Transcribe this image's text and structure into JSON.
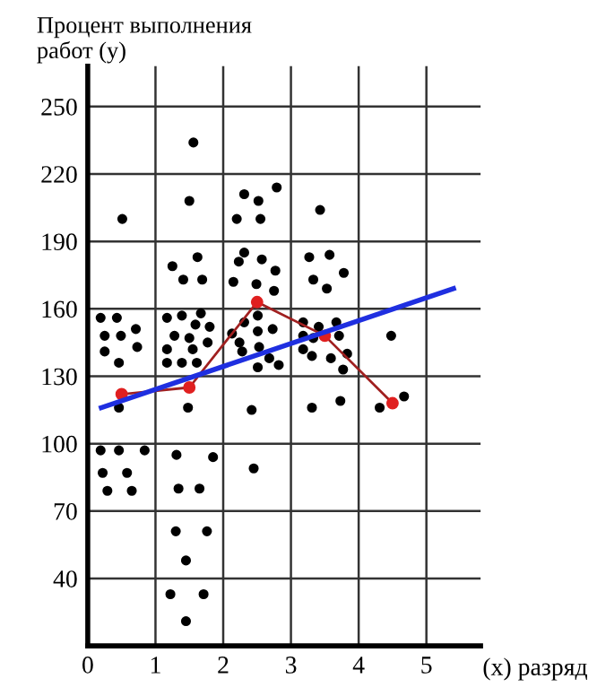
{
  "chart_data": {
    "type": "scatter",
    "xlabel": "(x) разряд",
    "ylabel": "Процент выполнения\nработ (y)",
    "xlim": [
      0,
      5.8
    ],
    "ylim": [
      10,
      268
    ],
    "xticks": [
      0,
      1,
      2,
      3,
      4,
      5
    ],
    "yticks": [
      40,
      70,
      100,
      130,
      160,
      190,
      220,
      250
    ],
    "grid": true,
    "series": [
      {
        "color": "#000000",
        "marker": "circle",
        "x": [
          0.51,
          1.56,
          1.5,
          2.31,
          2.2,
          2.52,
          2.55,
          2.79,
          3.43,
          1.25,
          1.41,
          1.62,
          1.69,
          2.15,
          2.23,
          2.31,
          2.57,
          2.77,
          2.75,
          2.49,
          0.19,
          0.43,
          0.25,
          0.49,
          0.71,
          0.25,
          0.73,
          0.46,
          0.46,
          1.17,
          1.39,
          1.67,
          1.28,
          1.59,
          1.8,
          1.5,
          1.17,
          1.55,
          1.77,
          1.17,
          1.39,
          1.61,
          1.48,
          2.13,
          2.31,
          2.24,
          2.51,
          2.51,
          2.73,
          2.53,
          2.28,
          2.68,
          2.51,
          2.82,
          2.42,
          3.27,
          3.57,
          3.78,
          3.33,
          3.53,
          3.18,
          3.41,
          3.67,
          3.18,
          3.33,
          3.71,
          3.18,
          3.31,
          3.59,
          3.83,
          3.77,
          4.48,
          3.31,
          3.73,
          4.31,
          4.67,
          0.19,
          0.46,
          0.84,
          1.31,
          1.85,
          0.22,
          0.58,
          0.29,
          0.65,
          1.34,
          1.65,
          2.45,
          1.3,
          1.76,
          1.45,
          1.22,
          1.71,
          1.45
        ],
        "values": [
          200,
          234,
          208,
          211,
          200,
          208,
          200,
          214,
          204,
          179,
          173,
          183,
          173,
          172,
          181,
          185,
          182,
          177,
          168,
          171,
          156,
          156,
          148,
          148,
          151,
          141,
          143,
          136,
          116,
          156,
          157,
          158,
          148,
          153,
          152,
          147,
          142,
          142,
          145,
          136,
          136,
          136,
          116,
          149,
          154,
          145,
          157,
          150,
          151,
          143,
          141,
          138,
          134,
          135,
          115,
          183,
          184,
          176,
          173,
          169,
          154,
          152,
          154,
          148,
          147,
          148,
          142,
          139,
          138,
          140,
          133,
          148,
          116,
          119,
          116,
          121,
          97,
          97,
          97,
          95,
          94,
          87,
          87,
          79,
          79,
          80,
          80,
          89,
          61,
          61,
          48,
          33,
          33,
          21
        ]
      },
      {
        "type": "line",
        "color": "#a02020",
        "marker": "circle",
        "line_style": "solid",
        "x": [
          0.5,
          1.5,
          2.5,
          3.5,
          4.5
        ],
        "values": [
          122,
          125,
          163,
          148,
          118
        ]
      },
      {
        "type": "line",
        "color": "#1f2fe0",
        "marker": "none",
        "line_style": "solid",
        "x": [
          0.2,
          5.4
        ],
        "values": [
          116,
          169
        ]
      }
    ]
  }
}
